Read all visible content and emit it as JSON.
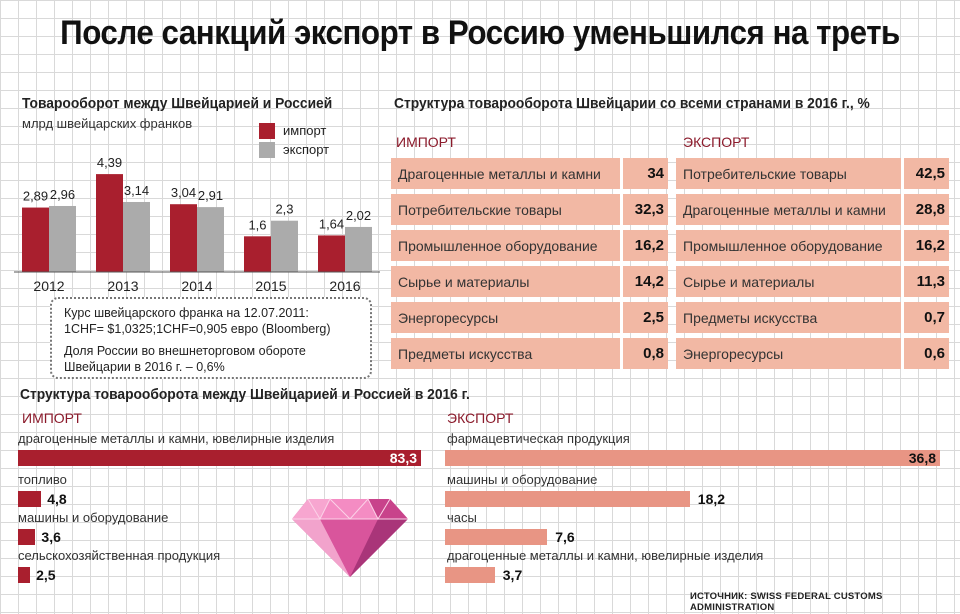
{
  "title": "После санкций экспорт в Россию уменьшился на треть",
  "colors": {
    "import": "#a91f2e",
    "export": "#ababab",
    "light_import": "#e89584",
    "panel": "#f2b8a4"
  },
  "left_chart": {
    "title": "Товарооборот между Швейцарией и Россией",
    "subtitle": "млрд швейцарских франков",
    "legend": {
      "import": "импорт",
      "export": "экспорт"
    }
  },
  "note": {
    "line1": "Курс швейцарского франка на 12.07.2011:",
    "line2": "1CHF= $1,0325;1CHF=0,905 евро (Bloomberg)",
    "line3": "Доля России во внешнеторговом обороте",
    "line4": "Швейцарии в 2016 г. – 0,6%"
  },
  "right_panel": {
    "title": "Структура товарооборота Швейцарии со всеми странами в 2016 г., %",
    "import_label": "ИМПОРТ",
    "export_label": "ЭКСПОРТ",
    "import_rows": [
      {
        "label": "Драгоценные металлы и камни",
        "value": "34"
      },
      {
        "label": "Потребительские товары",
        "value": "32,3"
      },
      {
        "label": "Промышленное оборудование",
        "value": "16,2"
      },
      {
        "label": "Сырье и материалы",
        "value": "14,2"
      },
      {
        "label": "Энергоресурсы",
        "value": "2,5"
      },
      {
        "label": "Предметы искусства",
        "value": "0,8"
      }
    ],
    "export_rows": [
      {
        "label": "Потребительские товары",
        "value": "42,5"
      },
      {
        "label": "Драгоценные металлы и камни",
        "value": "28,8"
      },
      {
        "label": "Промышленное оборудование",
        "value": "16,2"
      },
      {
        "label": "Сырье и материалы",
        "value": "11,3"
      },
      {
        "label": "Предметы искусства",
        "value": "0,7"
      },
      {
        "label": "Энергоресурсы",
        "value": "0,6"
      }
    ]
  },
  "bottom": {
    "title": "Структура товарооборота между Швейцарией и Россией в 2016 г.",
    "import_label": "ИМПОРТ",
    "export_label": "ЭКСПОРТ"
  },
  "source": "ИСТОЧНИК: SWISS FEDERAL CUSTOMS ADMINISTRATION",
  "chart_data": [
    {
      "type": "bar",
      "title": "Товарооборот между Швейцарией и Россией",
      "ylabel": "млрд швейцарских франков",
      "categories": [
        "2012",
        "2013",
        "2014",
        "2015",
        "2016"
      ],
      "series": [
        {
          "name": "импорт",
          "values": [
            2.89,
            4.39,
            3.04,
            1.6,
            1.64
          ],
          "labels": [
            "2,89",
            "4,39",
            "3,04",
            "1,6",
            "1,64"
          ]
        },
        {
          "name": "экспорт",
          "values": [
            2.96,
            3.14,
            2.91,
            2.3,
            2.02
          ],
          "labels": [
            "2,96",
            "3,14",
            "2,91",
            "2,3",
            "2,02"
          ]
        }
      ],
      "legend": "top-right"
    },
    {
      "type": "bar",
      "orientation": "horizontal",
      "title": "ИМПОРТ",
      "categories": [
        "драгоценные металлы и камни, ювелирные изделия",
        "топливо",
        "машины и оборудование",
        "сельскохозяйственная продукция"
      ],
      "values": [
        83.3,
        4.8,
        3.6,
        2.5
      ],
      "labels": [
        "83,3",
        "4,8",
        "3,6",
        "2,5"
      ]
    },
    {
      "type": "bar",
      "orientation": "horizontal",
      "title": "ЭКСПОРТ",
      "categories": [
        "фармацевтическая продукция",
        "машины и оборудование",
        "часы",
        "драгоценные металлы и камни, ювелирные изделия"
      ],
      "values": [
        36.8,
        18.2,
        7.6,
        3.7
      ],
      "labels": [
        "36,8",
        "18,2",
        "7,6",
        "3,7"
      ]
    }
  ]
}
